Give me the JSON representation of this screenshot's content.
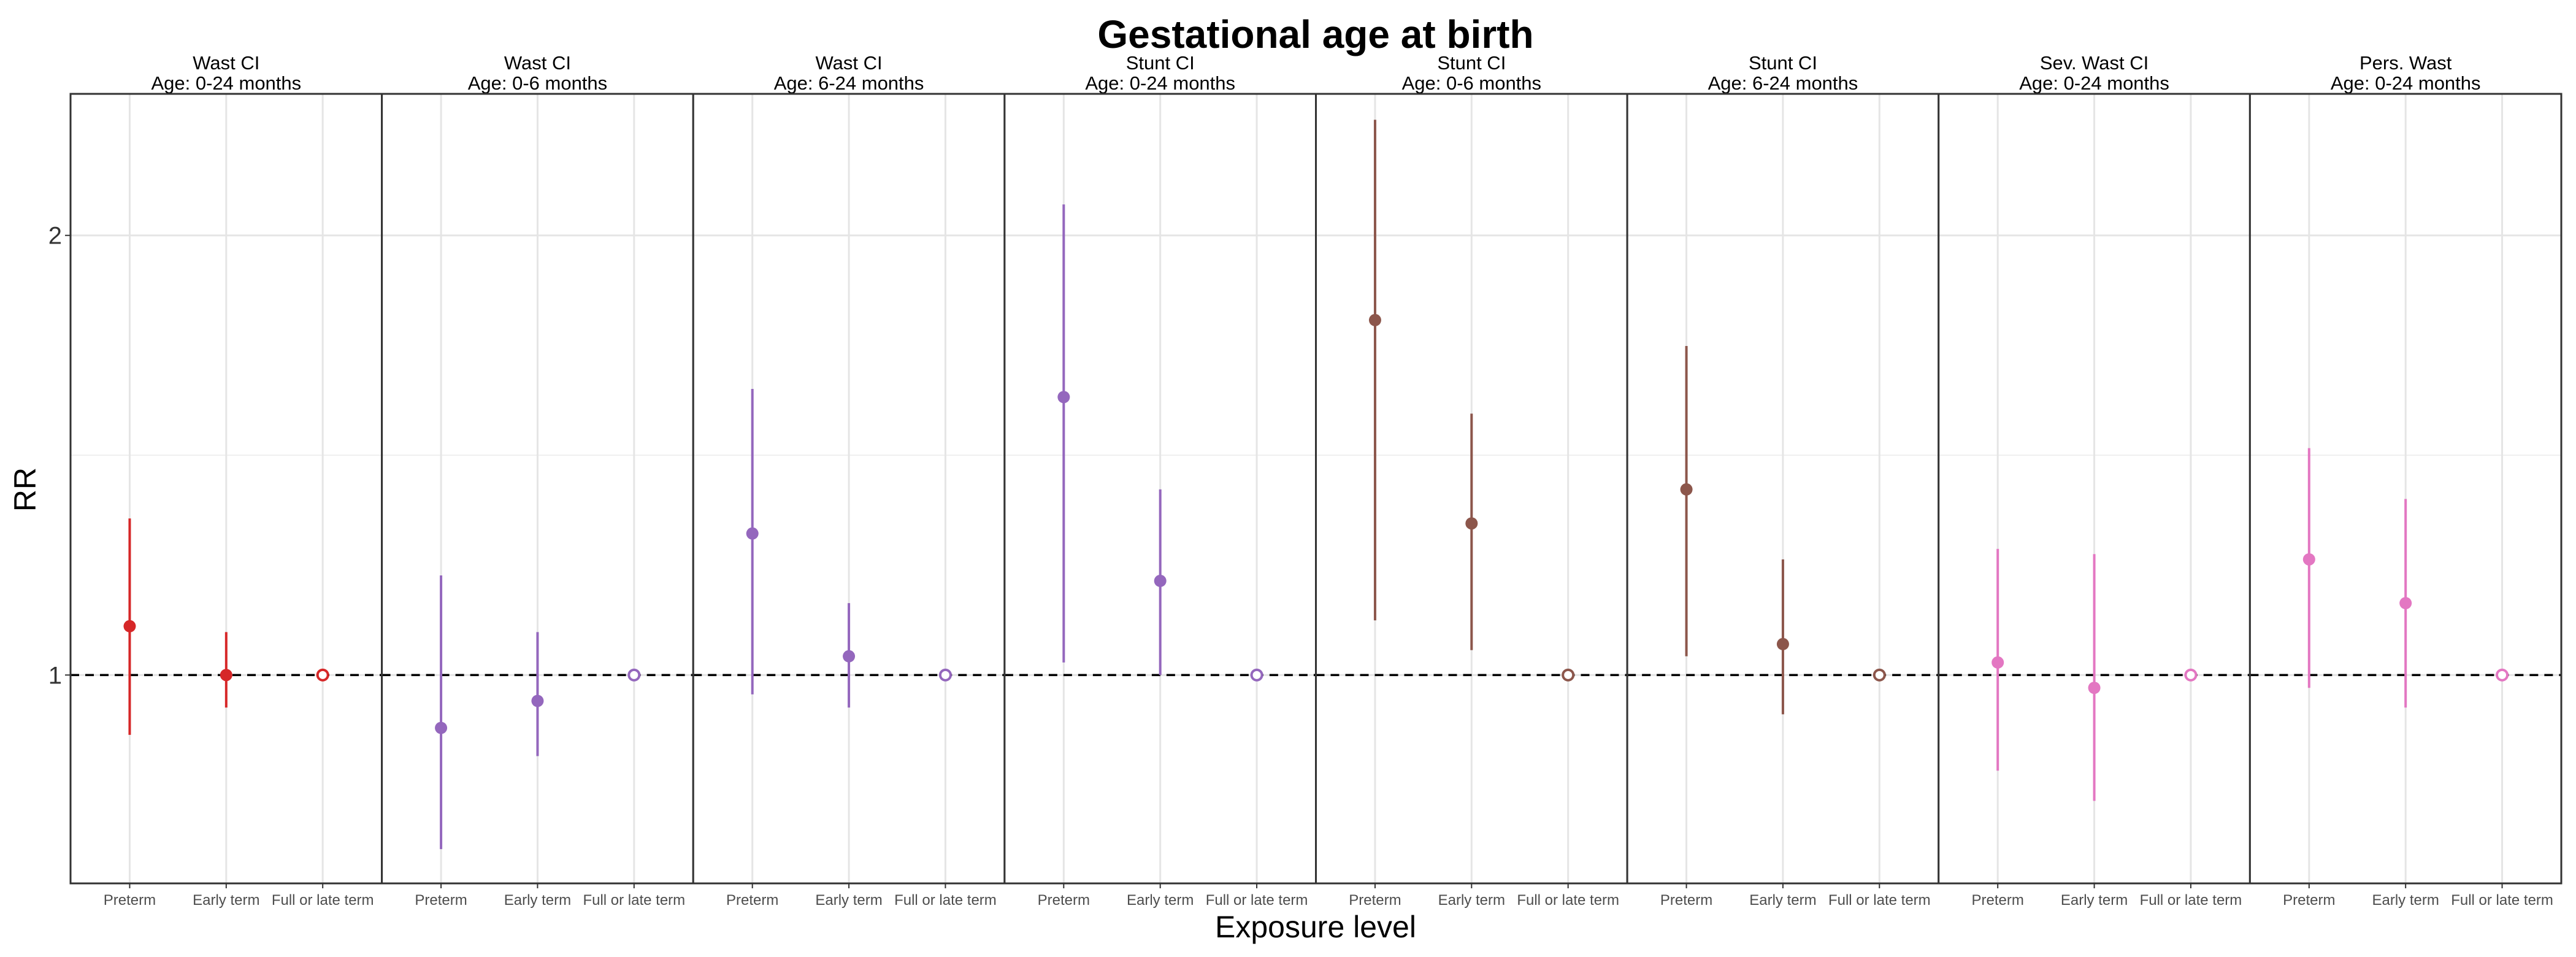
{
  "chart_data": {
    "type": "scatter",
    "title": "Gestational age at birth",
    "xlabel": "Exposure level",
    "ylabel": "RR",
    "y_scale": "log",
    "ylim": [
      0.72,
      2.5
    ],
    "yticks": [
      1,
      2
    ],
    "reference_line": 1,
    "grid": true,
    "categories": [
      "Preterm",
      "Early term",
      "Full or late term"
    ],
    "panels": [
      {
        "outcome": "Wast CI",
        "age": "Age: 0-24 months",
        "color": "#d62728",
        "points": [
          {
            "x": "Preterm",
            "rr": 1.08,
            "lower": 0.91,
            "upper": 1.28,
            "reference": false
          },
          {
            "x": "Early term",
            "rr": 1.0,
            "lower": 0.95,
            "upper": 1.07,
            "reference": false
          },
          {
            "x": "Full or late term",
            "rr": 1.0,
            "lower": 1.0,
            "upper": 1.0,
            "reference": true
          }
        ]
      },
      {
        "outcome": "Wast CI",
        "age": "Age: 0-6 months",
        "color": "#9467bd",
        "points": [
          {
            "x": "Preterm",
            "rr": 0.92,
            "lower": 0.76,
            "upper": 1.17,
            "reference": false
          },
          {
            "x": "Early term",
            "rr": 0.96,
            "lower": 0.88,
            "upper": 1.07,
            "reference": false
          },
          {
            "x": "Full or late term",
            "rr": 1.0,
            "lower": 1.0,
            "upper": 1.0,
            "reference": true
          }
        ]
      },
      {
        "outcome": "Wast CI",
        "age": "Age: 6-24 months",
        "color": "#9467bd",
        "points": [
          {
            "x": "Preterm",
            "rr": 1.25,
            "lower": 0.97,
            "upper": 1.57,
            "reference": false
          },
          {
            "x": "Early term",
            "rr": 1.03,
            "lower": 0.95,
            "upper": 1.12,
            "reference": false
          },
          {
            "x": "Full or late term",
            "rr": 1.0,
            "lower": 1.0,
            "upper": 1.0,
            "reference": true
          }
        ]
      },
      {
        "outcome": "Stunt CI",
        "age": "Age: 0-24 months",
        "color": "#9467bd",
        "points": [
          {
            "x": "Preterm",
            "rr": 1.55,
            "lower": 1.02,
            "upper": 2.1,
            "reference": false
          },
          {
            "x": "Early term",
            "rr": 1.16,
            "lower": 1.0,
            "upper": 1.34,
            "reference": false
          },
          {
            "x": "Full or late term",
            "rr": 1.0,
            "lower": 1.0,
            "upper": 1.0,
            "reference": true
          }
        ]
      },
      {
        "outcome": "Stunt CI",
        "age": "Age: 0-6 months",
        "color": "#8c564b",
        "points": [
          {
            "x": "Preterm",
            "rr": 1.75,
            "lower": 1.09,
            "upper": 2.4,
            "reference": false
          },
          {
            "x": "Early term",
            "rr": 1.27,
            "lower": 1.04,
            "upper": 1.51,
            "reference": false
          },
          {
            "x": "Full or late term",
            "rr": 1.0,
            "lower": 1.0,
            "upper": 1.0,
            "reference": true
          }
        ]
      },
      {
        "outcome": "Stunt CI",
        "age": "Age: 6-24 months",
        "color": "#8c564b",
        "points": [
          {
            "x": "Preterm",
            "rr": 1.34,
            "lower": 1.03,
            "upper": 1.68,
            "reference": false
          },
          {
            "x": "Early term",
            "rr": 1.05,
            "lower": 0.94,
            "upper": 1.2,
            "reference": false
          },
          {
            "x": "Full or late term",
            "rr": 1.0,
            "lower": 1.0,
            "upper": 1.0,
            "reference": true
          }
        ]
      },
      {
        "outcome": "Sev. Wast CI",
        "age": "Age: 0-24 months",
        "color": "#e377c2",
        "points": [
          {
            "x": "Preterm",
            "rr": 1.02,
            "lower": 0.86,
            "upper": 1.22,
            "reference": false
          },
          {
            "x": "Early term",
            "rr": 0.98,
            "lower": 0.82,
            "upper": 1.21,
            "reference": false
          },
          {
            "x": "Full or late term",
            "rr": 1.0,
            "lower": 1.0,
            "upper": 1.0,
            "reference": true
          }
        ]
      },
      {
        "outcome": "Pers. Wast",
        "age": "Age: 0-24 months",
        "color": "#e377c2",
        "points": [
          {
            "x": "Preterm",
            "rr": 1.2,
            "lower": 0.98,
            "upper": 1.43,
            "reference": false
          },
          {
            "x": "Early term",
            "rr": 1.12,
            "lower": 0.95,
            "upper": 1.32,
            "reference": false
          },
          {
            "x": "Full or late term",
            "rr": 1.0,
            "lower": 1.0,
            "upper": 1.0,
            "reference": true
          }
        ]
      }
    ]
  }
}
